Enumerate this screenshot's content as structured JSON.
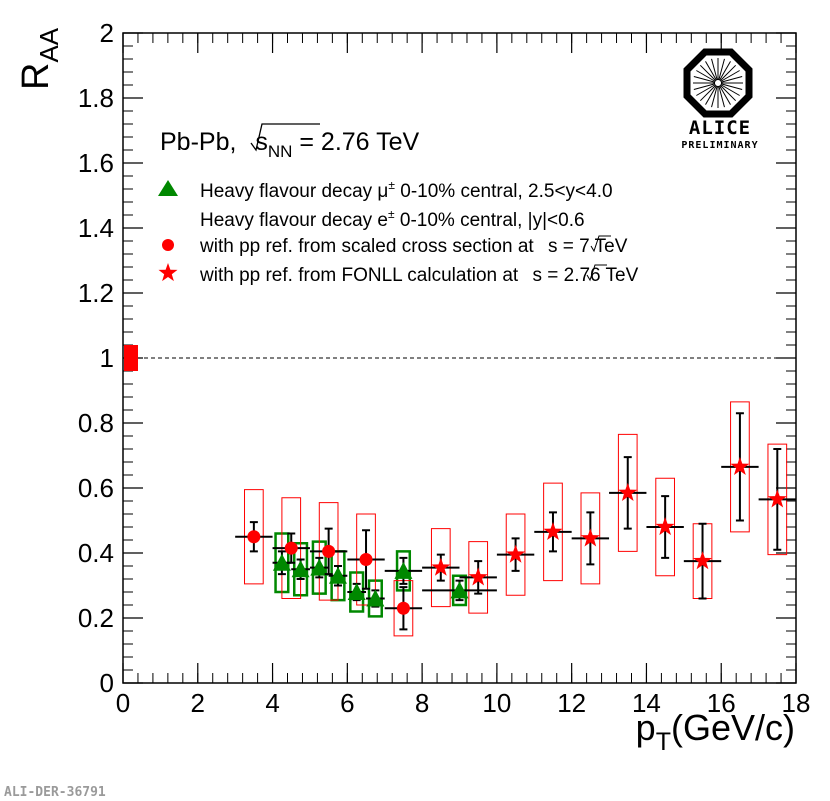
{
  "chart_data": {
    "type": "scatter",
    "title": "Pb-Pb, √s_NN = 2.76 TeV",
    "title_parts": {
      "prefix": "Pb-Pb, ",
      "s": "s",
      "sub": "NN",
      "suffix": " = 2.76 TeV"
    },
    "xlabel": {
      "main": "p",
      "sub": "T",
      "rest": "(GeV/c)"
    },
    "ylabel": {
      "main": "R",
      "sub": "AA"
    },
    "xlim": [
      0,
      18
    ],
    "ylim": [
      0,
      2
    ],
    "x_ticks": [
      0,
      2,
      4,
      6,
      8,
      10,
      12,
      14,
      16,
      18
    ],
    "y_ticks": [
      0,
      0.2,
      0.4,
      0.6,
      0.8,
      1,
      1.2,
      1.4,
      1.6,
      1.8,
      2
    ],
    "x_tick_labels": [
      "0",
      "2",
      "4",
      "6",
      "8",
      "10",
      "12",
      "14",
      "16",
      "18"
    ],
    "y_tick_labels": [
      "0",
      "0.2",
      "0.4",
      "0.6",
      "0.8",
      "1",
      "1.2",
      "1.4",
      "1.6",
      "1.8",
      "2"
    ],
    "reference_line": 1,
    "normalization_uncertainty": [
      0.96,
      1.04
    ],
    "legend": {
      "muon": {
        "text": "Heavy flavour decay μ",
        "sup": "±",
        "rest": " 0-10% central, 2.5<y<4.0"
      },
      "electron_header": {
        "text": "Heavy flavour decay e",
        "sup": "±",
        "rest": " 0-10% central, |y|<0.6"
      },
      "electron_scaled": {
        "text": " with pp ref. from scaled cross section at ",
        "s": "s",
        "rest": " = 7 TeV"
      },
      "electron_fonll": {
        "text": " with pp ref. from FONLL calculation at ",
        "s": "s",
        "rest": " = 2.76 TeV"
      }
    },
    "series": [
      {
        "name": "Heavy flavour decay muons 0-10% central, 2.5<y<4.0",
        "marker": "triangle",
        "color": "#008800",
        "points": [
          {
            "x": 4.25,
            "xerr": 0.25,
            "y": 0.37,
            "stat": 0.035,
            "sys": 0.09
          },
          {
            "x": 4.75,
            "xerr": 0.25,
            "y": 0.35,
            "stat": 0.03,
            "sys": 0.08
          },
          {
            "x": 5.25,
            "xerr": 0.25,
            "y": 0.355,
            "stat": 0.03,
            "sys": 0.08
          },
          {
            "x": 5.75,
            "xerr": 0.25,
            "y": 0.33,
            "stat": 0.03,
            "sys": 0.075
          },
          {
            "x": 6.25,
            "xerr": 0.25,
            "y": 0.28,
            "stat": 0.025,
            "sys": 0.06
          },
          {
            "x": 6.75,
            "xerr": 0.25,
            "y": 0.26,
            "stat": 0.025,
            "sys": 0.055
          },
          {
            "x": 7.5,
            "xerr": 0.5,
            "y": 0.345,
            "stat": 0.04,
            "sys": 0.06
          },
          {
            "x": 9.0,
            "xerr": 1.0,
            "y": 0.285,
            "stat": 0.03,
            "sys": 0.045
          }
        ]
      },
      {
        "name": "Heavy flavour decay electrons, pp ref. from scaled cross section at √s = 7 TeV",
        "marker": "circle",
        "color": "#ff0000",
        "points": [
          {
            "x": 3.5,
            "xerr": 0.5,
            "y": 0.45,
            "stat": 0.045,
            "sys": 0.145
          },
          {
            "x": 4.5,
            "xerr": 0.5,
            "y": 0.415,
            "stat": 0.045,
            "sys": 0.155
          },
          {
            "x": 5.5,
            "xerr": 0.5,
            "y": 0.405,
            "stat": 0.07,
            "sys": 0.15
          },
          {
            "x": 6.5,
            "xerr": 0.5,
            "y": 0.38,
            "stat": 0.09,
            "sys": 0.14
          },
          {
            "x": 7.5,
            "xerr": 0.5,
            "y": 0.23,
            "stat": 0.065,
            "sys": 0.085
          }
        ]
      },
      {
        "name": "Heavy flavour decay electrons, pp ref. from FONLL calculation at √s = 2.76 TeV",
        "marker": "star",
        "color": "#ff0000",
        "points": [
          {
            "x": 8.5,
            "xerr": 0.5,
            "y": 0.355,
            "stat": 0.04,
            "sys": 0.12
          },
          {
            "x": 9.5,
            "xerr": 0.5,
            "y": 0.325,
            "stat": 0.05,
            "sys": 0.11
          },
          {
            "x": 10.5,
            "xerr": 0.5,
            "y": 0.395,
            "stat": 0.05,
            "sys": 0.125
          },
          {
            "x": 11.5,
            "xerr": 0.5,
            "y": 0.465,
            "stat": 0.06,
            "sys": 0.15
          },
          {
            "x": 12.5,
            "xerr": 0.5,
            "y": 0.445,
            "stat": 0.08,
            "sys": 0.14
          },
          {
            "x": 13.5,
            "xerr": 0.5,
            "y": 0.585,
            "stat": 0.11,
            "sys": 0.18
          },
          {
            "x": 14.5,
            "xerr": 0.5,
            "y": 0.48,
            "stat": 0.095,
            "sys": 0.15
          },
          {
            "x": 15.5,
            "xerr": 0.5,
            "y": 0.375,
            "stat": 0.115,
            "sys": 0.115
          },
          {
            "x": 16.5,
            "xerr": 0.5,
            "y": 0.665,
            "stat": 0.165,
            "sys": 0.2
          },
          {
            "x": 17.5,
            "xerr": 0.5,
            "y": 0.565,
            "stat": 0.155,
            "sys": 0.17
          }
        ]
      }
    ]
  },
  "logo": {
    "name": "ALICE",
    "subtitle": "PRELIMINARY"
  },
  "footer": {
    "figure_id": "ALI-DER-36791"
  },
  "colors": {
    "red": "#ff0000",
    "green": "#008800",
    "black": "#000000"
  }
}
